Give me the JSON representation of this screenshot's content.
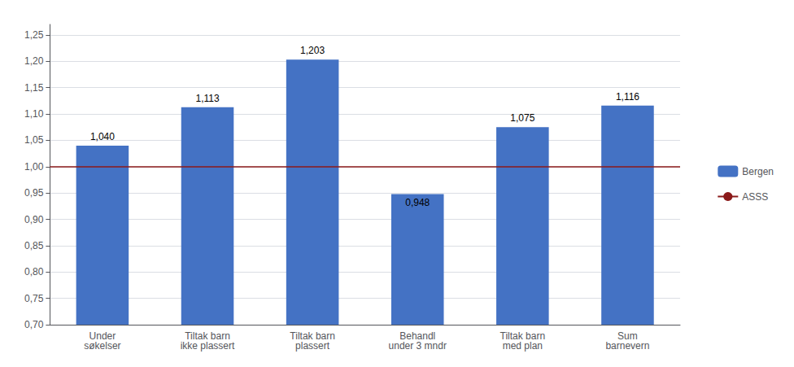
{
  "chart_data": {
    "type": "bar",
    "categories": [
      "Under\nsøkelser",
      "Tiltak barn\nikke plassert",
      "Tiltak barn\nplassert",
      "Behandl\nunder 3 mndr",
      "Tiltak barn\nmed plan",
      "Sum\nbarnevern"
    ],
    "series": [
      {
        "name": "Bergen",
        "color": "#4472C4",
        "values": [
          1.04,
          1.113,
          1.203,
          0.948,
          1.075,
          1.116
        ],
        "value_labels": [
          "1,040",
          "1,113",
          "1,203",
          "0,948",
          "1,075",
          "1,116"
        ]
      }
    ],
    "reference_line": {
      "name": "ASSS",
      "value": 1.0,
      "color": "#8B1A1A"
    },
    "data_labels": true,
    "ylim": [
      0.7,
      1.27
    ],
    "yticks": [
      {
        "value": 0.7,
        "label": "0,70"
      },
      {
        "value": 0.75,
        "label": "0,75"
      },
      {
        "value": 0.8,
        "label": "0,80"
      },
      {
        "value": 0.85,
        "label": "0,85"
      },
      {
        "value": 0.9,
        "label": "0,90"
      },
      {
        "value": 0.95,
        "label": "0,95"
      },
      {
        "value": 1.0,
        "label": "1,00"
      },
      {
        "value": 1.05,
        "label": "1,05"
      },
      {
        "value": 1.1,
        "label": "1,10"
      },
      {
        "value": 1.15,
        "label": "1,15"
      },
      {
        "value": 1.2,
        "label": "1,20"
      },
      {
        "value": 1.25,
        "label": "1,25"
      }
    ],
    "grid": true,
    "legend": "right"
  }
}
